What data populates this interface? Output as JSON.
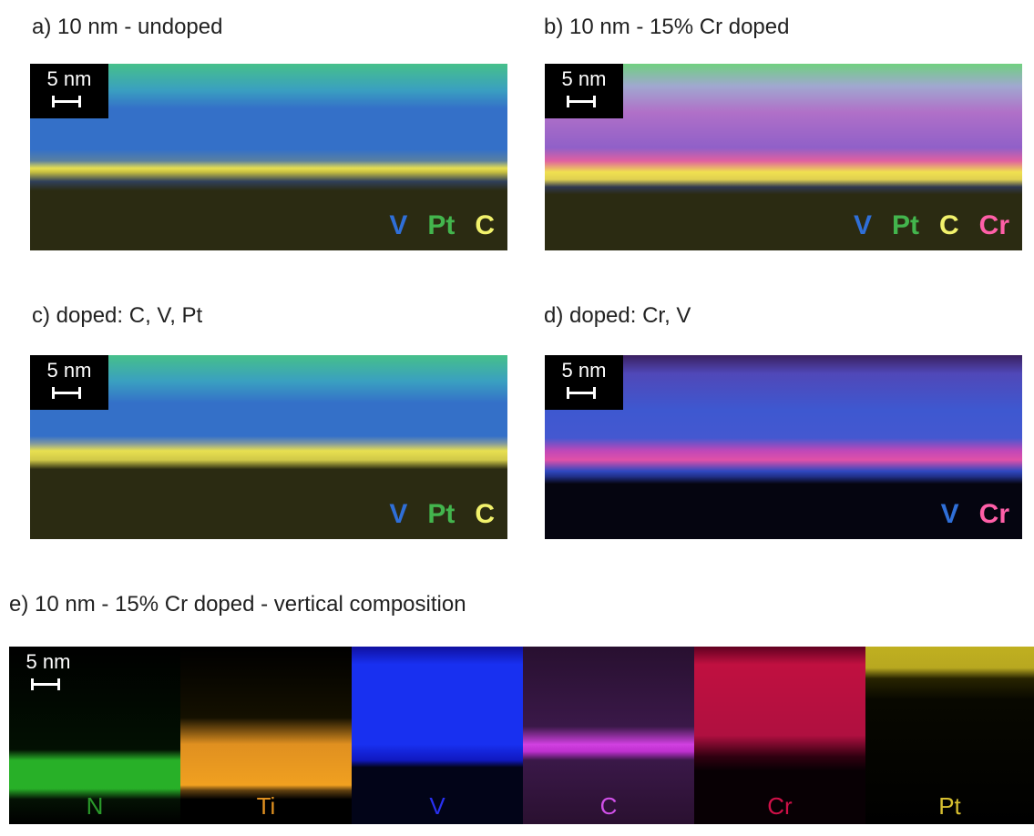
{
  "panels": [
    {
      "title": "a) 10 nm - undoped",
      "scale_bar": "5 nm",
      "labels": [
        "V",
        "Pt",
        "C"
      ]
    },
    {
      "title": "b) 10 nm - 15% Cr doped",
      "scale_bar": "5 nm",
      "labels": [
        "V",
        "Pt",
        "C",
        "Cr"
      ]
    },
    {
      "title": "c) doped: C, V, Pt",
      "scale_bar": "5 nm",
      "labels": [
        "V",
        "Pt",
        "C"
      ]
    },
    {
      "title": "d) doped: Cr, V",
      "scale_bar": "5 nm",
      "labels": [
        "V",
        "Cr"
      ]
    }
  ],
  "strip": {
    "title": "e) 10 nm - 15% Cr doped - vertical composition",
    "scale_bar": "5 nm",
    "labels": [
      "N",
      "Ti",
      "V",
      "C",
      "Cr",
      "Pt"
    ]
  }
}
